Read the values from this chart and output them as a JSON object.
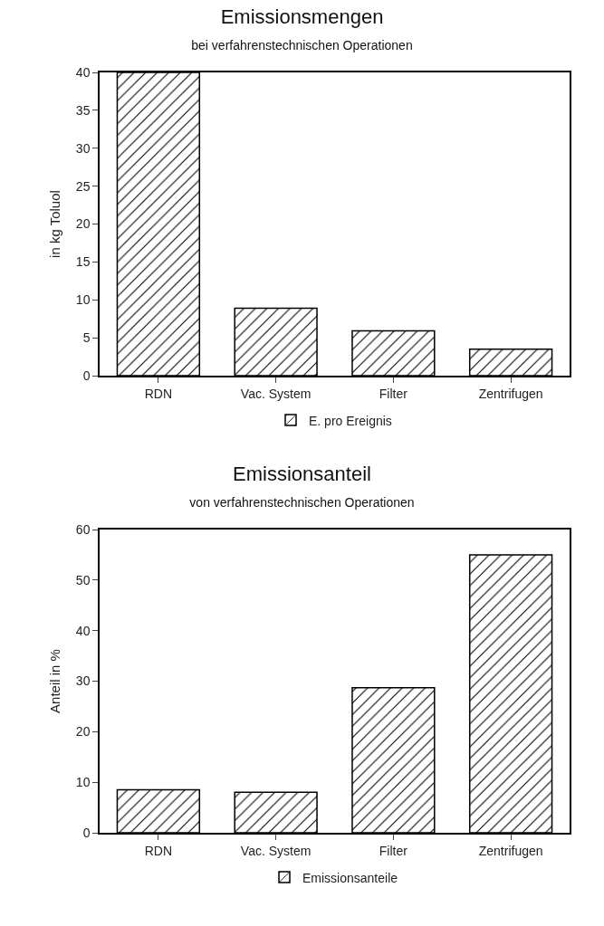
{
  "chart_data": [
    {
      "type": "bar",
      "title": "Emissionsmengen",
      "subtitle": "bei verfahrenstechnischen Operationen",
      "ylabel": "in kg Toluol",
      "categories": [
        "RDN",
        "Vac. System",
        "Filter",
        "Zentrifugen"
      ],
      "series": [
        {
          "name": "E. pro Ereignis",
          "color": "#000000",
          "values": [
            40,
            8.9,
            5.9,
            3.5
          ]
        }
      ],
      "ylim": [
        0,
        40
      ],
      "yticks": [
        0,
        5,
        10,
        15,
        20,
        25,
        30,
        35,
        40
      ],
      "grid": false,
      "legend": "bottom"
    },
    {
      "type": "bar",
      "title": "Emissionsanteil",
      "subtitle": "von verfahrenstechnischen Operationen",
      "ylabel": "Anteil in %",
      "categories": [
        "RDN",
        "Vac. System",
        "Filter",
        "Zentrifugen"
      ],
      "series": [
        {
          "name": "Emissionsanteile",
          "color": "#000000",
          "values": [
            8.5,
            8,
            28.7,
            55
          ]
        }
      ],
      "ylim": [
        0,
        60
      ],
      "yticks": [
        0,
        10,
        20,
        30,
        40,
        50,
        60
      ],
      "grid": false,
      "legend": "bottom"
    }
  ]
}
